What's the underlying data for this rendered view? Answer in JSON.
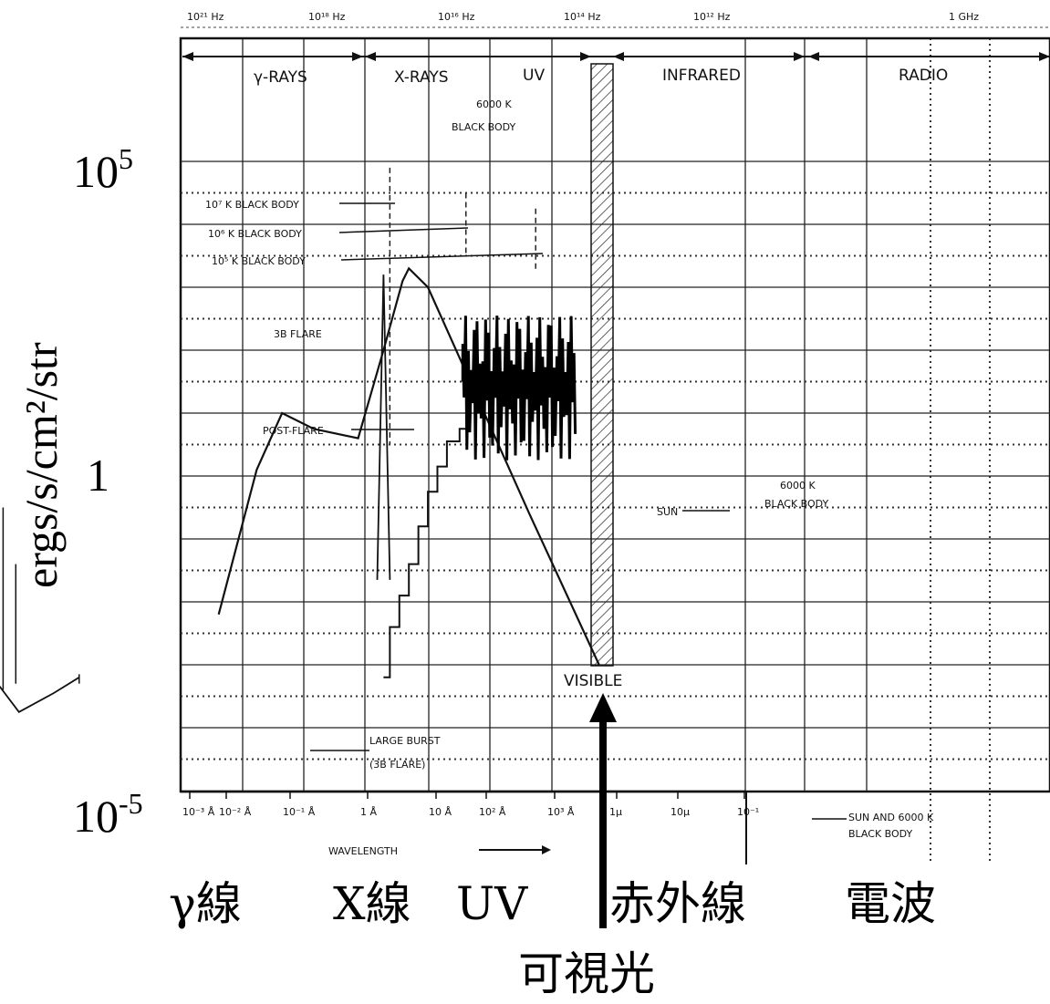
{
  "chart_data": {
    "type": "line",
    "xlabel": "WAVELENGTH",
    "ylabel": "ergs/s/cm²/str",
    "y_scale": "log",
    "y_ticks": [
      {
        "value": 100000,
        "base": "10",
        "exp": "5"
      },
      {
        "value": 1,
        "base": "1",
        "exp": ""
      },
      {
        "value": 1e-05,
        "base": "10",
        "exp": "-5"
      }
    ],
    "freq_ticks": [
      "10²¹ Hz",
      "10¹⁸ Hz",
      "10¹⁶ Hz",
      "10¹⁴ Hz",
      "10¹² Hz",
      "1 GHz"
    ],
    "wavelength_ticks": [
      "10⁻³ Å",
      "10⁻² Å",
      "10⁻¹ Å",
      "1 Å",
      "10 Å",
      "10² Å",
      "10³ Å",
      "1μ",
      "10μ",
      "10⁻¹"
    ],
    "bands": [
      "γ-RAYS",
      "X-RAYS",
      "UV",
      "INFRARED",
      "RADIO"
    ],
    "visible_label": "VISIBLE",
    "annotations": [
      "6000 K BLACK BODY",
      "10⁷ K BLACK BODY",
      "10⁶ K BLACK BODY",
      "10⁵ K BLACK BODY",
      "3B FLARE",
      "POST-FLARE",
      "SUN",
      "6000 K BLACK BODY",
      "LARGE BURST",
      "(3B FLARE)",
      "SUN AND 6000 K BLACK BODY"
    ],
    "series": [
      {
        "values": [
          [
            -3.0,
            -6.3
          ],
          [
            -2.55,
            -7.5
          ],
          [
            -2.0,
            -6.9
          ],
          [
            -1.6,
            -6.4
          ]
        ]
      },
      {
        "values": [
          [
            0.6,
            -4.4
          ],
          [
            1.2,
            0.2
          ],
          [
            1.6,
            2.0
          ],
          [
            2.1,
            1.5
          ],
          [
            2.8,
            1.2
          ],
          [
            3.2,
            4.0
          ],
          [
            3.5,
            6.2
          ],
          [
            3.6,
            6.6
          ],
          [
            3.9,
            6.0
          ],
          [
            4.5,
            3.3
          ],
          [
            5.5,
            -1.2
          ],
          [
            6.6,
            -6.0
          ]
        ]
      },
      {
        "values": [
          [
            3.1,
            -3.3
          ],
          [
            3.2,
            6.4
          ],
          [
            3.3,
            -3.3
          ]
        ]
      }
    ]
  },
  "japanese_labels": {
    "gamma": "γ線",
    "xray": "X線",
    "uv": "UV",
    "infrared": "赤外線",
    "radio": "電波",
    "visible": "可視光"
  }
}
